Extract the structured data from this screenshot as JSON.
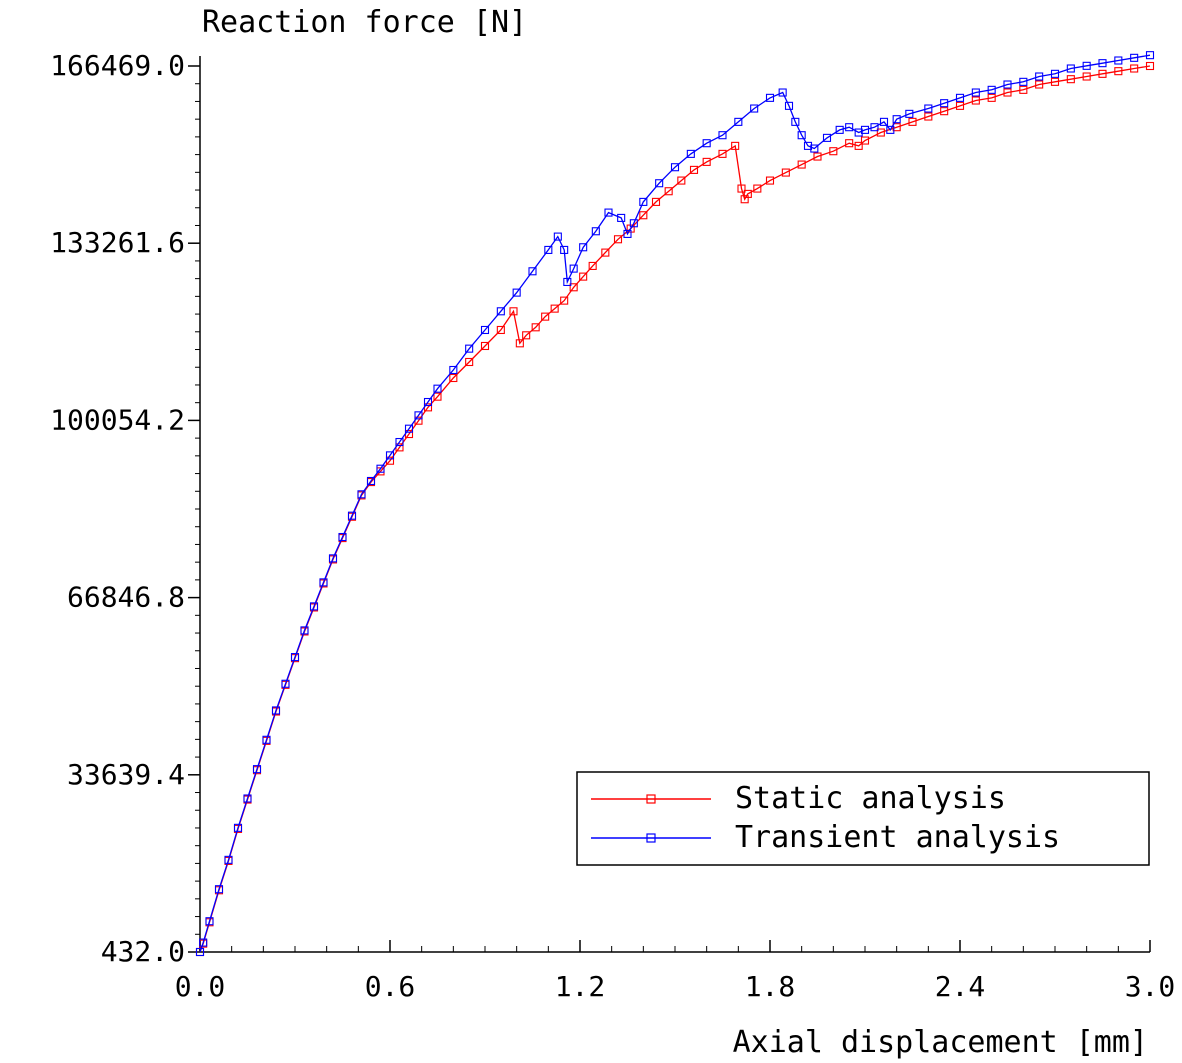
{
  "chart_data": {
    "type": "line",
    "title": "",
    "xlabel": "Axial displacement [mm]",
    "ylabel": "Reaction force [N]",
    "xlim": [
      0.0,
      3.0
    ],
    "ylim": [
      432.0,
      166469.0
    ],
    "x_ticks": [
      0.0,
      0.6,
      1.2,
      1.8,
      2.4,
      3.0
    ],
    "x_tick_labels": [
      "0.0",
      "0.6",
      "1.2",
      "1.8",
      "2.4",
      "3.0"
    ],
    "y_ticks": [
      432.0,
      33639.4,
      66846.8,
      100054.2,
      133261.6,
      166469.0
    ],
    "y_tick_labels": [
      "432.0",
      "33639.4",
      "66846.8",
      "100054.2",
      "133261.6",
      "166469.0"
    ],
    "grid": false,
    "legend_position": "bottom-right",
    "series": [
      {
        "name": "Static analysis",
        "color": "#ff0000",
        "marker": "square",
        "x": [
          0.0,
          0.01,
          0.03,
          0.06,
          0.09,
          0.12,
          0.15,
          0.18,
          0.21,
          0.24,
          0.27,
          0.3,
          0.33,
          0.36,
          0.39,
          0.42,
          0.45,
          0.48,
          0.51,
          0.54,
          0.57,
          0.6,
          0.63,
          0.66,
          0.69,
          0.72,
          0.75,
          0.8,
          0.85,
          0.9,
          0.95,
          0.99,
          1.01,
          1.03,
          1.06,
          1.09,
          1.12,
          1.15,
          1.18,
          1.21,
          1.24,
          1.28,
          1.32,
          1.36,
          1.4,
          1.44,
          1.48,
          1.52,
          1.56,
          1.6,
          1.65,
          1.69,
          1.71,
          1.72,
          1.73,
          1.76,
          1.8,
          1.85,
          1.9,
          1.95,
          2.0,
          2.05,
          2.08,
          2.1,
          2.15,
          2.2,
          2.25,
          2.3,
          2.35,
          2.4,
          2.45,
          2.5,
          2.55,
          2.6,
          2.65,
          2.7,
          2.75,
          2.8,
          2.85,
          2.9,
          2.95,
          3.0
        ],
        "y": [
          432,
          2000,
          6000,
          12000,
          17500,
          23500,
          29000,
          34500,
          40000,
          45500,
          50500,
          55500,
          60500,
          65000,
          69500,
          74000,
          78000,
          82000,
          86000,
          88500,
          90500,
          92500,
          95000,
          97500,
          100000,
          102500,
          104500,
          108000,
          111000,
          114000,
          117000,
          120500,
          114500,
          116000,
          117500,
          119500,
          121000,
          122500,
          125000,
          127000,
          129000,
          131500,
          134000,
          136000,
          138500,
          141000,
          143000,
          145000,
          147000,
          148500,
          150000,
          151500,
          143500,
          141500,
          142500,
          143500,
          145000,
          146500,
          148000,
          149500,
          150500,
          152000,
          151500,
          152500,
          154000,
          155000,
          156000,
          157000,
          158000,
          159000,
          160000,
          160500,
          161500,
          162000,
          163000,
          163500,
          164000,
          164500,
          165000,
          165500,
          166000,
          166469
        ]
      },
      {
        "name": "Transient analysis",
        "color": "#0000ff",
        "marker": "square",
        "x": [
          0.0,
          0.01,
          0.03,
          0.06,
          0.09,
          0.12,
          0.15,
          0.18,
          0.21,
          0.24,
          0.27,
          0.3,
          0.33,
          0.36,
          0.39,
          0.42,
          0.45,
          0.48,
          0.51,
          0.54,
          0.57,
          0.6,
          0.63,
          0.66,
          0.69,
          0.72,
          0.75,
          0.8,
          0.85,
          0.9,
          0.95,
          1.0,
          1.05,
          1.1,
          1.13,
          1.15,
          1.16,
          1.18,
          1.21,
          1.25,
          1.29,
          1.33,
          1.35,
          1.37,
          1.4,
          1.45,
          1.5,
          1.55,
          1.6,
          1.65,
          1.7,
          1.75,
          1.8,
          1.84,
          1.86,
          1.88,
          1.9,
          1.92,
          1.94,
          1.98,
          2.02,
          2.05,
          2.08,
          2.1,
          2.13,
          2.16,
          2.18,
          2.2,
          2.24,
          2.3,
          2.35,
          2.4,
          2.45,
          2.5,
          2.55,
          2.6,
          2.65,
          2.7,
          2.75,
          2.8,
          2.85,
          2.9,
          2.95,
          3.0
        ],
        "y": [
          432,
          2200,
          6200,
          12200,
          17700,
          23700,
          29200,
          34700,
          40200,
          45700,
          50700,
          55700,
          60700,
          65200,
          69700,
          74200,
          78200,
          82200,
          86200,
          88700,
          91000,
          93500,
          96000,
          98500,
          101000,
          103500,
          106000,
          109500,
          113500,
          117000,
          120500,
          124000,
          128000,
          132000,
          134500,
          132000,
          126000,
          128500,
          132500,
          135500,
          139000,
          138000,
          135000,
          137000,
          141000,
          144500,
          147500,
          150000,
          152000,
          153500,
          156000,
          158500,
          160500,
          161500,
          159000,
          156000,
          153500,
          151500,
          151000,
          153000,
          154500,
          155000,
          154000,
          154500,
          155000,
          156000,
          154500,
          156500,
          157500,
          158500,
          159500,
          160500,
          161500,
          162000,
          163000,
          163500,
          164500,
          165000,
          166000,
          166500,
          167000,
          167500,
          168000,
          168500
        ]
      }
    ]
  }
}
